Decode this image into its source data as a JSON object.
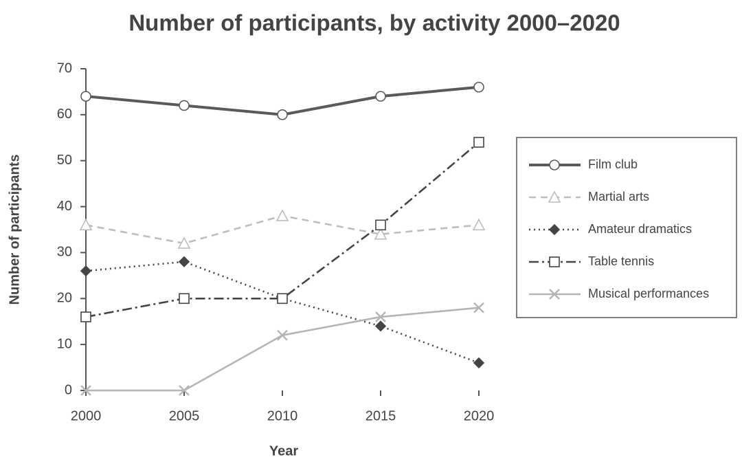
{
  "chart_data": {
    "type": "line",
    "title": "Number of participants, by activity 2000–2020",
    "x_label": "Year",
    "y_label": "Number of participants",
    "x": [
      2000,
      2005,
      2010,
      2015,
      2020
    ],
    "xlim": [
      2000,
      2020
    ],
    "xticks": [
      2000,
      2005,
      2010,
      2015,
      2020
    ],
    "ylim": [
      0,
      70
    ],
    "yticks": [
      0,
      10,
      20,
      30,
      40,
      50,
      60,
      70
    ],
    "grid": false,
    "legend": "right",
    "series": [
      {
        "name": "Film club",
        "color": "#5a5a5a",
        "line_style": "solid",
        "marker": "circle",
        "values": [
          64,
          62,
          60,
          64,
          66
        ]
      },
      {
        "name": "Martial arts",
        "color": "#bdbdbd",
        "line_style": "dashed",
        "marker": "triangle",
        "values": [
          36,
          32,
          38,
          34,
          36
        ]
      },
      {
        "name": "Amateur dramatics",
        "color": "#444444",
        "line_style": "dotted",
        "marker": "diamond",
        "values": [
          26,
          28,
          20,
          14,
          6
        ]
      },
      {
        "name": "Table tennis",
        "color": "#444444",
        "line_style": "dashdot",
        "marker": "square",
        "values": [
          16,
          20,
          20,
          36,
          54
        ]
      },
      {
        "name": "Musical performances",
        "color": "#b5b5b5",
        "line_style": "solid",
        "marker": "x",
        "values": [
          0,
          0,
          12,
          16,
          18
        ]
      }
    ]
  }
}
